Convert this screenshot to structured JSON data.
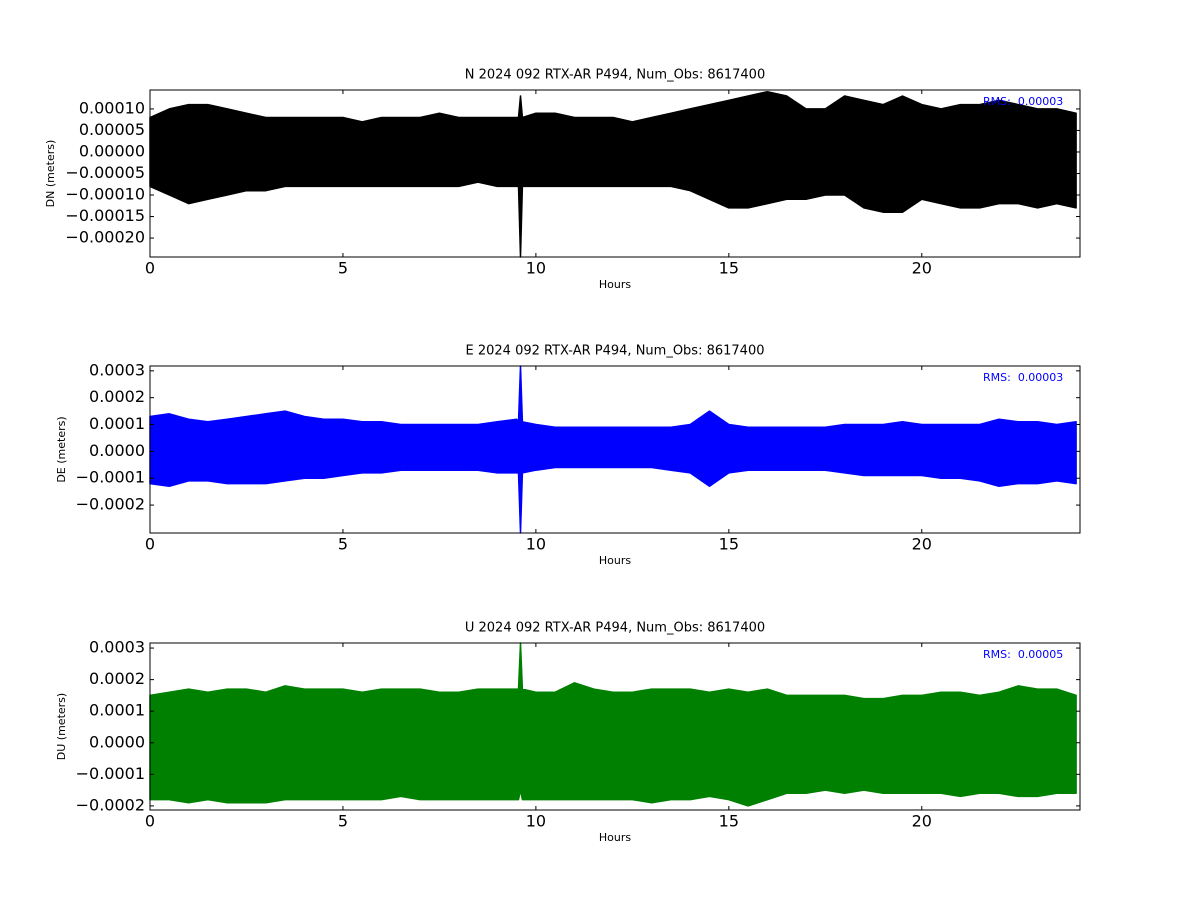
{
  "chart_data": [
    {
      "type": "band",
      "title": "N 2024 092 RTX-AR  P494, Num_Obs: 8617400",
      "xlabel": "Hours",
      "ylabel": "DN (meters)",
      "annotation": "RMS:  0.00003",
      "annotation_color": "#0000ff",
      "color": "#000000",
      "xlim": [
        0,
        24.1
      ],
      "xticks": [
        0,
        5,
        10,
        15,
        20
      ],
      "ylim": [
        -0.000244,
        0.000144
      ],
      "yticks": [
        {
          "value": 0.0001,
          "label": "0.00010"
        },
        {
          "value": 5e-05,
          "label": "0.00005"
        },
        {
          "value": 0,
          "label": "0.00000"
        },
        {
          "value": -5e-05,
          "label": "−0.00005"
        },
        {
          "value": -0.0001,
          "label": "−0.00010"
        },
        {
          "value": -0.00015,
          "label": "−0.00015"
        },
        {
          "value": -0.0002,
          "label": "−0.00020"
        }
      ],
      "x": [
        0,
        0.5,
        1,
        1.5,
        2,
        2.5,
        3,
        3.5,
        4,
        4.5,
        5,
        5.5,
        6,
        6.5,
        7,
        7.5,
        8,
        8.5,
        9,
        9.5,
        9.55,
        9.6,
        9.65,
        10,
        10.5,
        11,
        11.5,
        12,
        12.5,
        13,
        13.5,
        14,
        14.5,
        15,
        15.5,
        16,
        16.5,
        17,
        17.5,
        18,
        18.5,
        19,
        19.5,
        20,
        20.5,
        21,
        21.5,
        22,
        22.5,
        23,
        23.5,
        24
      ],
      "upper": [
        8e-05,
        0.0001,
        0.00011,
        0.00011,
        0.0001,
        9e-05,
        8e-05,
        8e-05,
        8e-05,
        8e-05,
        8e-05,
        7e-05,
        8e-05,
        8e-05,
        8e-05,
        9e-05,
        8e-05,
        8e-05,
        8e-05,
        8e-05,
        8e-05,
        0.00013,
        8e-05,
        9e-05,
        9e-05,
        8e-05,
        8e-05,
        8e-05,
        7e-05,
        8e-05,
        9e-05,
        0.0001,
        0.00011,
        0.00012,
        0.00013,
        0.00014,
        0.00013,
        0.0001,
        0.0001,
        0.00013,
        0.00012,
        0.00011,
        0.00013,
        0.00011,
        0.0001,
        0.00011,
        0.00011,
        0.00012,
        0.00011,
        0.0001,
        0.0001,
        9e-05
      ],
      "lower": [
        -8e-05,
        -0.0001,
        -0.00012,
        -0.00011,
        -0.0001,
        -9e-05,
        -9e-05,
        -8e-05,
        -8e-05,
        -8e-05,
        -8e-05,
        -8e-05,
        -8e-05,
        -8e-05,
        -8e-05,
        -8e-05,
        -8e-05,
        -7e-05,
        -8e-05,
        -8e-05,
        -8e-05,
        -0.000244,
        -8e-05,
        -8e-05,
        -8e-05,
        -8e-05,
        -8e-05,
        -8e-05,
        -8e-05,
        -8e-05,
        -8e-05,
        -9e-05,
        -0.00011,
        -0.00013,
        -0.00013,
        -0.00012,
        -0.00011,
        -0.00011,
        -0.0001,
        -0.0001,
        -0.00013,
        -0.00014,
        -0.00014,
        -0.00011,
        -0.00012,
        -0.00013,
        -0.00013,
        -0.00012,
        -0.00012,
        -0.00013,
        -0.00012,
        -0.00013
      ]
    },
    {
      "type": "band",
      "title": "E 2024 092 RTX-AR  P494, Num_Obs: 8617400",
      "xlabel": "Hours",
      "ylabel": "DE (meters)",
      "annotation": "RMS:  0.00003",
      "annotation_color": "#0000ff",
      "color": "#0000ff",
      "xlim": [
        0,
        24.1
      ],
      "xticks": [
        0,
        5,
        10,
        15,
        20
      ],
      "ylim": [
        -0.000304,
        0.000318
      ],
      "yticks": [
        {
          "value": 0.0003,
          "label": "0.0003"
        },
        {
          "value": 0.0002,
          "label": "0.0002"
        },
        {
          "value": 0.0001,
          "label": "0.0001"
        },
        {
          "value": 0,
          "label": "0.0000"
        },
        {
          "value": -0.0001,
          "label": "−0.0001"
        },
        {
          "value": -0.0002,
          "label": "−0.0002"
        }
      ],
      "x": [
        0,
        0.5,
        1,
        1.5,
        2,
        2.5,
        3,
        3.5,
        4,
        4.5,
        5,
        5.5,
        6,
        6.5,
        7,
        7.5,
        8,
        8.5,
        9,
        9.5,
        9.55,
        9.6,
        9.65,
        10,
        10.5,
        11,
        11.5,
        12,
        12.5,
        13,
        13.5,
        14,
        14.5,
        15,
        15.5,
        16,
        16.5,
        17,
        17.5,
        18,
        18.5,
        19,
        19.5,
        20,
        20.5,
        21,
        21.5,
        22,
        22.5,
        23,
        23.5,
        24
      ],
      "upper": [
        0.00013,
        0.00014,
        0.00012,
        0.00011,
        0.00012,
        0.00013,
        0.00014,
        0.00015,
        0.00013,
        0.00012,
        0.00012,
        0.00011,
        0.00011,
        0.0001,
        0.0001,
        0.0001,
        0.0001,
        0.0001,
        0.00011,
        0.00012,
        0.00011,
        0.000318,
        0.00011,
        0.0001,
        9e-05,
        9e-05,
        9e-05,
        9e-05,
        9e-05,
        9e-05,
        9e-05,
        0.0001,
        0.00015,
        0.0001,
        9e-05,
        9e-05,
        9e-05,
        9e-05,
        9e-05,
        0.0001,
        0.0001,
        0.0001,
        0.00011,
        0.0001,
        0.0001,
        0.0001,
        0.0001,
        0.00012,
        0.00011,
        0.00011,
        0.0001,
        0.00011
      ],
      "lower": [
        -0.00012,
        -0.00013,
        -0.00011,
        -0.00011,
        -0.00012,
        -0.00012,
        -0.00012,
        -0.00011,
        -0.0001,
        -0.0001,
        -9e-05,
        -8e-05,
        -8e-05,
        -7e-05,
        -7e-05,
        -7e-05,
        -7e-05,
        -7e-05,
        -8e-05,
        -8e-05,
        -8e-05,
        -0.000304,
        -8e-05,
        -7e-05,
        -6e-05,
        -6e-05,
        -6e-05,
        -6e-05,
        -6e-05,
        -6e-05,
        -7e-05,
        -8e-05,
        -0.00013,
        -8e-05,
        -7e-05,
        -7e-05,
        -7e-05,
        -7e-05,
        -7e-05,
        -8e-05,
        -9e-05,
        -9e-05,
        -9e-05,
        -9e-05,
        -0.0001,
        -0.0001,
        -0.00011,
        -0.00013,
        -0.00012,
        -0.00012,
        -0.00011,
        -0.00012
      ]
    },
    {
      "type": "band",
      "title": "U 2024 092 RTX-AR  P494, Num_Obs: 8617400",
      "xlabel": "Hours",
      "ylabel": "DU (meters)",
      "annotation": "RMS:  0.00005",
      "annotation_color": "#0000ff",
      "color": "#008000",
      "xlim": [
        0,
        24.1
      ],
      "xticks": [
        0,
        5,
        10,
        15,
        20
      ],
      "ylim": [
        -0.000213,
        0.000316
      ],
      "yticks": [
        {
          "value": 0.0003,
          "label": "0.0003"
        },
        {
          "value": 0.0002,
          "label": "0.0002"
        },
        {
          "value": 0.0001,
          "label": "0.0001"
        },
        {
          "value": 0,
          "label": "0.0000"
        },
        {
          "value": -0.0001,
          "label": "−0.0001"
        },
        {
          "value": -0.0002,
          "label": "−0.0002"
        }
      ],
      "x": [
        0,
        0.5,
        1,
        1.5,
        2,
        2.5,
        3,
        3.5,
        4,
        4.5,
        5,
        5.5,
        6,
        6.5,
        7,
        7.5,
        8,
        8.5,
        9,
        9.5,
        9.55,
        9.6,
        9.65,
        10,
        10.5,
        11,
        11.5,
        12,
        12.5,
        13,
        13.5,
        14,
        14.5,
        15,
        15.5,
        16,
        16.5,
        17,
        17.5,
        18,
        18.5,
        19,
        19.5,
        20,
        20.5,
        21,
        21.5,
        22,
        22.5,
        23,
        23.5,
        24
      ],
      "upper": [
        0.00015,
        0.00016,
        0.00017,
        0.00016,
        0.00017,
        0.00017,
        0.00016,
        0.00018,
        0.00017,
        0.00017,
        0.00017,
        0.00016,
        0.00017,
        0.00017,
        0.00017,
        0.00016,
        0.00016,
        0.00017,
        0.00017,
        0.00017,
        0.00017,
        0.000316,
        0.00017,
        0.00016,
        0.00016,
        0.00019,
        0.00017,
        0.00016,
        0.00016,
        0.00017,
        0.00017,
        0.00017,
        0.00016,
        0.00017,
        0.00016,
        0.00017,
        0.00015,
        0.00015,
        0.00015,
        0.00015,
        0.00014,
        0.00014,
        0.00015,
        0.00015,
        0.00016,
        0.00016,
        0.00015,
        0.00016,
        0.00018,
        0.00017,
        0.00017,
        0.00015
      ],
      "lower": [
        -0.00018,
        -0.00018,
        -0.00019,
        -0.00018,
        -0.00019,
        -0.00019,
        -0.00019,
        -0.00018,
        -0.00018,
        -0.00018,
        -0.00018,
        -0.00018,
        -0.00018,
        -0.00017,
        -0.00018,
        -0.00018,
        -0.00018,
        -0.00018,
        -0.00018,
        -0.00018,
        -0.00018,
        -0.00015,
        -0.00018,
        -0.00018,
        -0.00018,
        -0.00018,
        -0.00018,
        -0.00018,
        -0.00018,
        -0.00019,
        -0.00018,
        -0.00018,
        -0.00017,
        -0.00018,
        -0.0002,
        -0.00018,
        -0.00016,
        -0.00016,
        -0.00015,
        -0.00016,
        -0.00015,
        -0.00016,
        -0.00016,
        -0.00016,
        -0.00016,
        -0.00017,
        -0.00016,
        -0.00016,
        -0.00017,
        -0.00017,
        -0.00016,
        -0.00016
      ]
    }
  ]
}
